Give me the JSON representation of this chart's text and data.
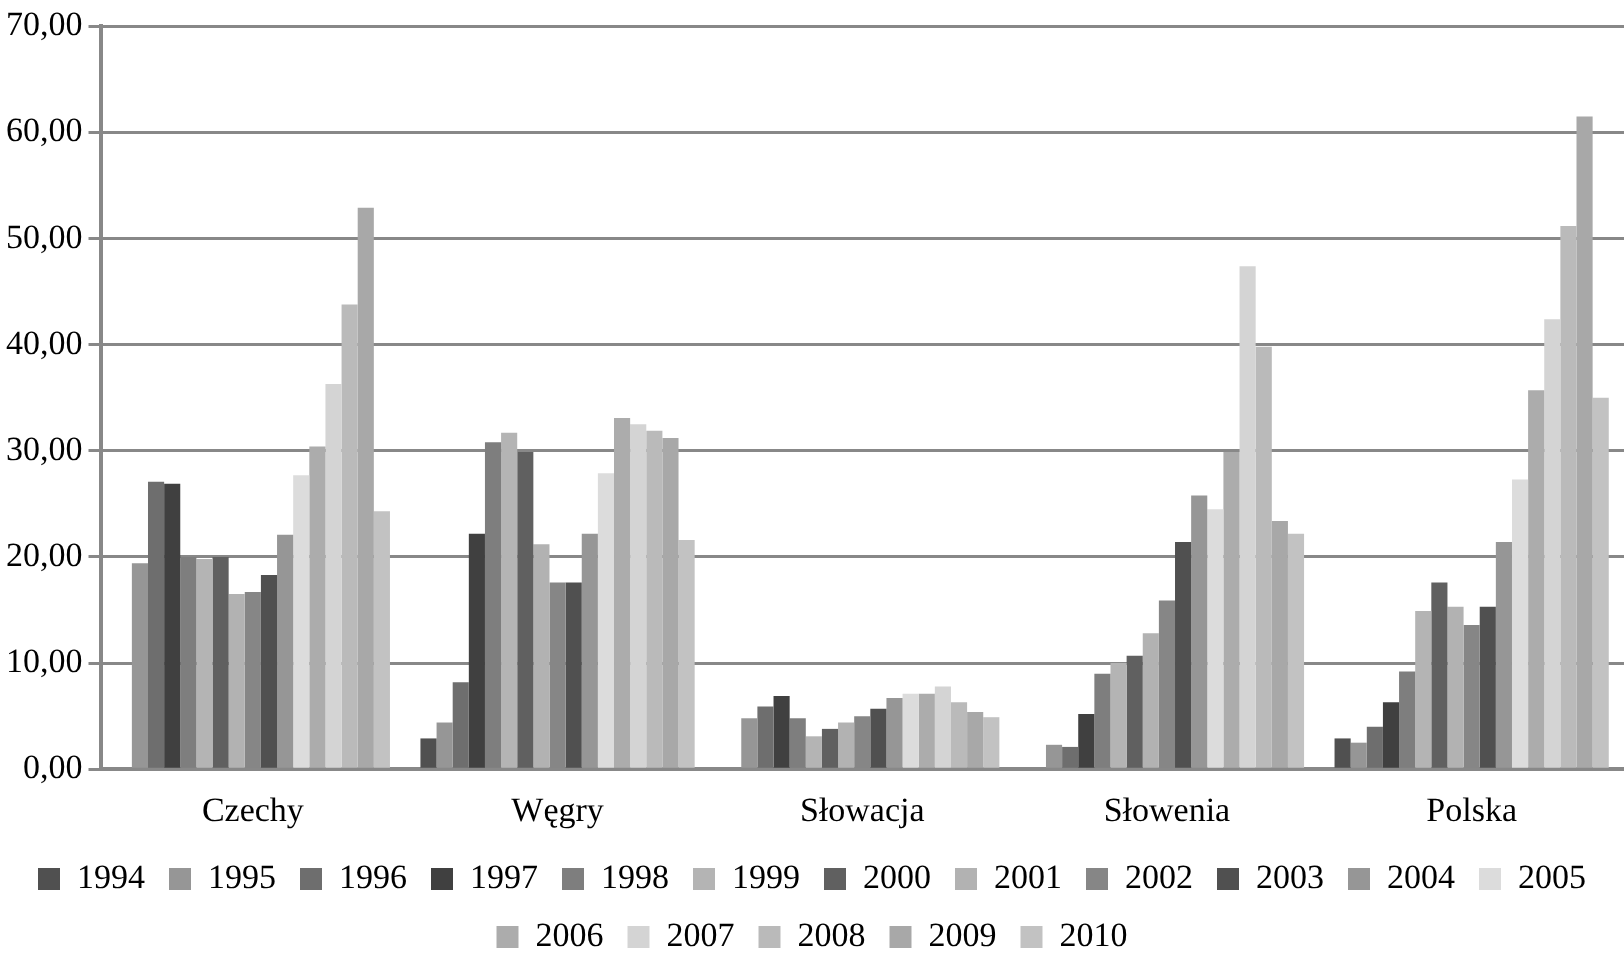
{
  "chart_data": {
    "type": "bar",
    "categories": [
      "Czechy",
      "Węgry",
      "Słowacja",
      "Słowenia",
      "Polska"
    ],
    "series": [
      {
        "name": "1994",
        "color": "#505050",
        "values": [
          null,
          2.9,
          null,
          null,
          2.9
        ]
      },
      {
        "name": "1995",
        "color": "#969696",
        "values": [
          19.4,
          4.4,
          4.8,
          2.3,
          2.5
        ]
      },
      {
        "name": "1996",
        "color": "#6e6e6e",
        "values": [
          27.1,
          8.2,
          5.9,
          2.1,
          4.0
        ]
      },
      {
        "name": "1997",
        "color": "#404040",
        "values": [
          26.9,
          22.2,
          6.9,
          5.2,
          6.3
        ]
      },
      {
        "name": "1998",
        "color": "#7e7e7e",
        "values": [
          20.0,
          30.8,
          4.8,
          9.0,
          9.2
        ]
      },
      {
        "name": "1999",
        "color": "#b4b4b4",
        "values": [
          19.8,
          31.7,
          3.1,
          10.0,
          14.9
        ]
      },
      {
        "name": "2000",
        "color": "#606060",
        "values": [
          20.0,
          29.9,
          3.8,
          10.7,
          17.6
        ]
      },
      {
        "name": "2001",
        "color": "#b2b2b2",
        "values": [
          16.5,
          21.2,
          4.4,
          12.8,
          15.3
        ]
      },
      {
        "name": "2002",
        "color": "#868686",
        "values": [
          16.7,
          17.6,
          5.0,
          15.9,
          13.6
        ]
      },
      {
        "name": "2003",
        "color": "#505050",
        "values": [
          18.3,
          17.6,
          5.7,
          21.4,
          15.3
        ]
      },
      {
        "name": "2004",
        "color": "#969696",
        "values": [
          22.1,
          22.2,
          6.7,
          25.8,
          21.4
        ]
      },
      {
        "name": "2005",
        "color": "#dcdcdc",
        "values": [
          27.7,
          27.9,
          7.1,
          24.5,
          27.3
        ]
      },
      {
        "name": "2006",
        "color": "#acacac",
        "values": [
          30.4,
          33.1,
          7.1,
          29.9,
          35.7
        ]
      },
      {
        "name": "2007",
        "color": "#d4d4d4",
        "values": [
          36.3,
          32.5,
          7.8,
          47.4,
          42.4
        ]
      },
      {
        "name": "2008",
        "color": "#bababa",
        "values": [
          43.8,
          31.9,
          6.3,
          39.8,
          51.2
        ]
      },
      {
        "name": "2009",
        "color": "#a8a8a8",
        "values": [
          52.9,
          31.2,
          5.4,
          23.4,
          61.5
        ]
      },
      {
        "name": "2010",
        "color": "#c2c2c2",
        "values": [
          24.3,
          21.6,
          4.9,
          22.2,
          35.0
        ]
      }
    ],
    "ylim": [
      0,
      70
    ],
    "yticks": [
      {
        "value": 0,
        "label": "0,00"
      },
      {
        "value": 10,
        "label": "10,00"
      },
      {
        "value": 20,
        "label": "20,00"
      },
      {
        "value": 30,
        "label": "30,00"
      },
      {
        "value": 40,
        "label": "40,00"
      },
      {
        "value": 50,
        "label": "50,00"
      },
      {
        "value": 60,
        "label": "60,00"
      },
      {
        "value": 70,
        "label": "70,00"
      }
    ],
    "grid": "y",
    "legend": "bottom"
  }
}
